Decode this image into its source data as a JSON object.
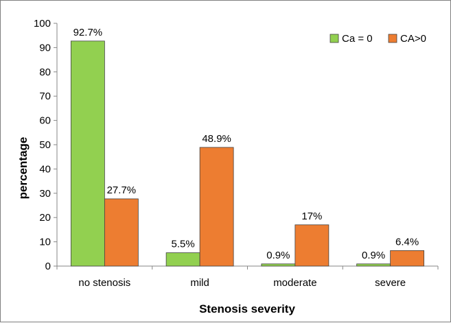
{
  "chart_data": {
    "type": "bar",
    "title": "",
    "xlabel": "Stenosis severity",
    "ylabel": "percentage",
    "categories": [
      "no stenosis",
      "mild",
      "moderate",
      "severe"
    ],
    "series": [
      {
        "name": "Ca = 0",
        "color": "#92d050",
        "values": [
          92.7,
          5.5,
          0.9,
          0.9
        ],
        "labels": [
          "92.7%",
          "5.5%",
          "0.9%",
          "0.9%"
        ]
      },
      {
        "name": "CA>0",
        "color": "#ed7d31",
        "values": [
          27.7,
          48.9,
          17,
          6.4
        ],
        "labels": [
          "27.7%",
          "48.9%",
          "17%",
          "6.4%"
        ]
      }
    ],
    "ylim": [
      0,
      100
    ],
    "yticks": [
      0,
      10,
      20,
      30,
      40,
      50,
      60,
      70,
      80,
      90,
      100
    ],
    "grid": false,
    "legend_position": "top-right"
  }
}
